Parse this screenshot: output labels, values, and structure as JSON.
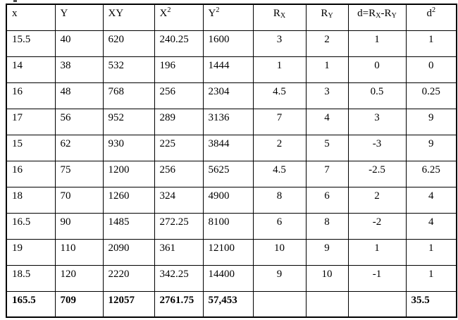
{
  "colors": {
    "background": "#ffffff",
    "text": "#000000",
    "border": "#000000"
  },
  "table": {
    "column_align": [
      "left",
      "left",
      "left",
      "left",
      "left",
      "center",
      "center",
      "center",
      "center"
    ],
    "headers": [
      {
        "parts": [
          {
            "t": "x"
          }
        ]
      },
      {
        "parts": [
          {
            "t": "Y"
          }
        ]
      },
      {
        "parts": [
          {
            "t": "XY"
          }
        ]
      },
      {
        "parts": [
          {
            "t": "X"
          },
          {
            "sup": "2"
          }
        ]
      },
      {
        "parts": [
          {
            "t": "Y"
          },
          {
            "sup": "2"
          }
        ]
      },
      {
        "parts": [
          {
            "t": "R"
          },
          {
            "sub": "X"
          }
        ]
      },
      {
        "parts": [
          {
            "t": "R"
          },
          {
            "sub": "Y"
          }
        ]
      },
      {
        "parts": [
          {
            "t": "d=R"
          },
          {
            "sub": "X"
          },
          {
            "t": "-R"
          },
          {
            "sub": "Y"
          }
        ]
      },
      {
        "parts": [
          {
            "t": "d"
          },
          {
            "sup": "2"
          }
        ]
      }
    ],
    "rows": [
      [
        "15.5",
        "40",
        "620",
        "240.25",
        "1600",
        "3",
        "2",
        "1",
        "1"
      ],
      [
        "14",
        "38",
        "532",
        "196",
        "1444",
        "1",
        "1",
        "0",
        "0"
      ],
      [
        "16",
        "48",
        "768",
        "256",
        "2304",
        "4.5",
        "3",
        "0.5",
        "0.25"
      ],
      [
        "17",
        "56",
        "952",
        "289",
        "3136",
        "7",
        "4",
        "3",
        "9"
      ],
      [
        "15",
        "62",
        "930",
        "225",
        "3844",
        "2",
        "5",
        "-3",
        "9"
      ],
      [
        "16",
        "75",
        "1200",
        "256",
        "5625",
        "4.5",
        "7",
        "-2.5",
        "6.25"
      ],
      [
        "18",
        "70",
        "1260",
        "324",
        "4900",
        "8",
        "6",
        "2",
        "4"
      ],
      [
        "16.5",
        "90",
        "1485",
        "272.25",
        "8100",
        "6",
        "8",
        "-2",
        "4"
      ],
      [
        "19",
        "110",
        "2090",
        "361",
        "12100",
        "10",
        "9",
        "1",
        "1"
      ],
      [
        "18.5",
        "120",
        "2220",
        "342.25",
        "14400",
        "9",
        "10",
        "-1",
        "1"
      ]
    ],
    "totals_row": [
      "165.5",
      "709",
      "12057",
      "2761.75",
      "57,453",
      "",
      "",
      "",
      "35.5"
    ]
  }
}
